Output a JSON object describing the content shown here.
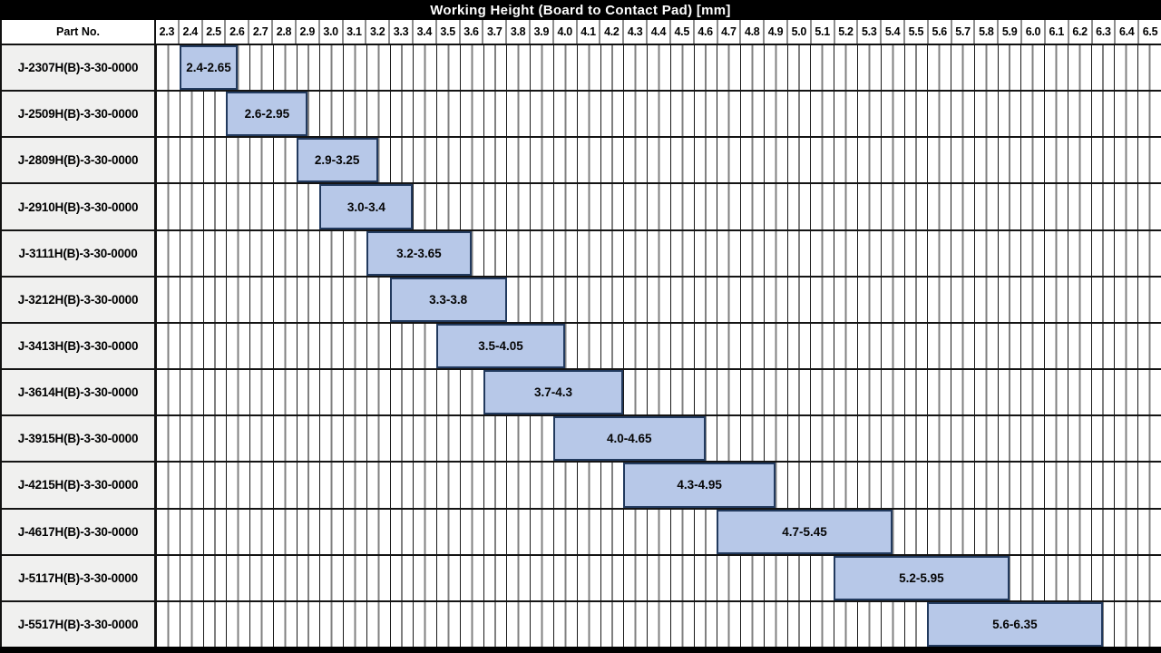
{
  "title": "Working Height (Board to Contact Pad) [mm]",
  "header": {
    "part_no_label": "Part No."
  },
  "colors": {
    "title_bg": "#000000",
    "title_fg": "#ffffff",
    "bar_fill": "#b7c8e8",
    "bar_border": "#223a5e",
    "row_label_bg": "#f0f0ef",
    "grid_major_line": "#1a1a1a",
    "grid_minor_line": "#808080"
  },
  "chart_data": {
    "type": "bar",
    "subtype": "horizontal-range-gantt",
    "title": "Working Height (Board to Contact Pad) [mm]",
    "categories": [
      "J-2307H(B)-3-30-0000",
      "J-2509H(B)-3-30-0000",
      "J-2809H(B)-3-30-0000",
      "J-2910H(B)-3-30-0000",
      "J-3111H(B)-3-30-0000",
      "J-3212H(B)-3-30-0000",
      "J-3413H(B)-3-30-0000",
      "J-3614H(B)-3-30-0000",
      "J-3915H(B)-3-30-0000",
      "J-4215H(B)-3-30-0000",
      "J-4617H(B)-3-30-0000",
      "J-5117H(B)-3-30-0000",
      "J-5517H(B)-3-30-0000"
    ],
    "ranges": [
      [
        2.4,
        2.65
      ],
      [
        2.6,
        2.95
      ],
      [
        2.9,
        3.25
      ],
      [
        3.0,
        3.4
      ],
      [
        3.2,
        3.65
      ],
      [
        3.3,
        3.8
      ],
      [
        3.5,
        4.05
      ],
      [
        3.7,
        4.3
      ],
      [
        4.0,
        4.65
      ],
      [
        4.3,
        4.95
      ],
      [
        4.7,
        5.45
      ],
      [
        5.2,
        5.95
      ],
      [
        5.6,
        6.35
      ]
    ],
    "range_labels": [
      "2.4-2.65",
      "2.6-2.95",
      "2.9-3.25",
      "3.0-3.4",
      "3.2-3.65",
      "3.3-3.8",
      "3.5-4.05",
      "3.7-4.3",
      "4.0-4.65",
      "4.3-4.95",
      "4.7-5.45",
      "5.2-5.95",
      "5.6-6.35"
    ],
    "xlabel": "Working Height (Board to Contact Pad) [mm]",
    "xlim": [
      2.3,
      6.6
    ],
    "x_tick_step": 0.1,
    "x_minor_step": 0.05,
    "x_ticks": [
      "2.3",
      "2.4",
      "2.5",
      "2.6",
      "2.7",
      "2.8",
      "2.9",
      "3.0",
      "3.1",
      "3.2",
      "3.3",
      "3.4",
      "3.5",
      "3.6",
      "3.7",
      "3.8",
      "3.9",
      "4.0",
      "4.1",
      "4.2",
      "4.3",
      "4.4",
      "4.5",
      "4.6",
      "4.7",
      "4.8",
      "4.9",
      "5.0",
      "5.1",
      "5.2",
      "5.3",
      "5.4",
      "5.5",
      "5.6",
      "5.7",
      "5.8",
      "5.9",
      "6.0",
      "6.1",
      "6.2",
      "6.3",
      "6.4",
      "6.5"
    ],
    "grid": "on",
    "legend": "none"
  }
}
